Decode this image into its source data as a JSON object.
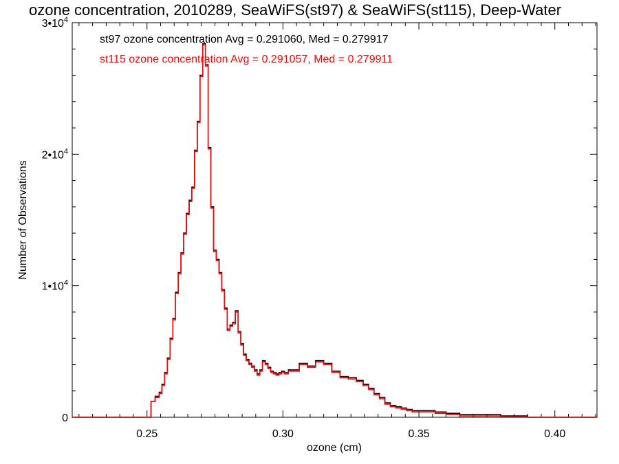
{
  "chart_data": {
    "type": "line",
    "title": "ozone concentration, 2010289, SeaWiFS(st97) & SeaWiFS(st115), Deep-Water",
    "xlabel": "ozone (cm)",
    "ylabel": "Number of Observations",
    "xlim": [
      0.2225,
      0.4155
    ],
    "ylim": [
      0,
      30000
    ],
    "x_ticks": [
      {
        "value": 0.25,
        "label": "0.25"
      },
      {
        "value": 0.3,
        "label": "0.30"
      },
      {
        "value": 0.35,
        "label": "0.35"
      },
      {
        "value": 0.4,
        "label": "0.40"
      }
    ],
    "y_ticks": [
      {
        "value": 0,
        "label": "0"
      },
      {
        "value": 10000,
        "label": "1•10^4"
      },
      {
        "value": 20000,
        "label": "2•10^4"
      },
      {
        "value": 30000,
        "label": "3•10^4"
      }
    ],
    "grid": false,
    "annotations": [
      {
        "text": "st97 ozone concentration Avg = 0.291060, Med = 0.279917",
        "color": "#000000"
      },
      {
        "text": "st115 ozone concentration Avg = 0.291057, Med = 0.279911",
        "color": "#ff0000"
      }
    ],
    "series": [
      {
        "name": "st97",
        "color": "#000000",
        "x": [
          0.2225,
          0.2505,
          0.2515,
          0.253,
          0.2545,
          0.2555,
          0.2565,
          0.2575,
          0.2585,
          0.2595,
          0.2605,
          0.2615,
          0.2625,
          0.2635,
          0.2645,
          0.2655,
          0.2665,
          0.2675,
          0.2685,
          0.2695,
          0.2705,
          0.2715,
          0.2725,
          0.2735,
          0.2745,
          0.2755,
          0.2765,
          0.2775,
          0.2785,
          0.2795,
          0.2805,
          0.2815,
          0.2825,
          0.2835,
          0.2845,
          0.2855,
          0.2865,
          0.2875,
          0.2885,
          0.2895,
          0.2905,
          0.2915,
          0.2925,
          0.2935,
          0.2945,
          0.2955,
          0.2965,
          0.2975,
          0.2985,
          0.2995,
          0.3005,
          0.302,
          0.304,
          0.306,
          0.309,
          0.312,
          0.315,
          0.318,
          0.321,
          0.324,
          0.327,
          0.3295,
          0.3315,
          0.3335,
          0.3355,
          0.3375,
          0.3395,
          0.3415,
          0.3435,
          0.3455,
          0.3475,
          0.3495,
          0.3525,
          0.356,
          0.36,
          0.365,
          0.37,
          0.375,
          0.38,
          0.385,
          0.39,
          0.395,
          0.4,
          0.405,
          0.41,
          0.4155
        ],
        "values": [
          0,
          0,
          1200,
          1600,
          1900,
          2500,
          3400,
          4500,
          6000,
          7500,
          9500,
          11000,
          12500,
          14000,
          15500,
          16500,
          17500,
          20300,
          22500,
          26000,
          28400,
          26800,
          20500,
          16000,
          12700,
          12000,
          11000,
          9700,
          8300,
          6700,
          7000,
          7200,
          8100,
          6500,
          5600,
          4800,
          4400,
          4100,
          3900,
          3600,
          3300,
          3600,
          4300,
          4100,
          3800,
          3500,
          3400,
          3300,
          3400,
          3500,
          3400,
          3600,
          3600,
          4100,
          3900,
          4300,
          4100,
          3500,
          3100,
          3000,
          2800,
          2500,
          2200,
          1800,
          1500,
          1100,
          900,
          800,
          700,
          600,
          500,
          500,
          500,
          400,
          300,
          200,
          200,
          200,
          100,
          100,
          0,
          0,
          0,
          0,
          0,
          0
        ]
      },
      {
        "name": "st115",
        "color": "#ff0000",
        "x": [
          0.2225,
          0.2505,
          0.2515,
          0.253,
          0.2545,
          0.2555,
          0.2565,
          0.2575,
          0.2585,
          0.2595,
          0.2605,
          0.2615,
          0.2625,
          0.2635,
          0.2645,
          0.2655,
          0.2665,
          0.2675,
          0.2685,
          0.2695,
          0.2705,
          0.2715,
          0.2725,
          0.2735,
          0.2745,
          0.2755,
          0.2765,
          0.2775,
          0.2785,
          0.2795,
          0.2805,
          0.2815,
          0.2825,
          0.2835,
          0.2845,
          0.2855,
          0.2865,
          0.2875,
          0.2885,
          0.2895,
          0.2905,
          0.2915,
          0.2925,
          0.2935,
          0.2945,
          0.2955,
          0.2965,
          0.2975,
          0.2985,
          0.2995,
          0.3005,
          0.302,
          0.304,
          0.306,
          0.309,
          0.312,
          0.315,
          0.318,
          0.321,
          0.324,
          0.327,
          0.3295,
          0.3315,
          0.3335,
          0.3355,
          0.3375,
          0.3395,
          0.3415,
          0.3435,
          0.3455,
          0.3475,
          0.3495,
          0.3525,
          0.356,
          0.36,
          0.365,
          0.37,
          0.375,
          0.38,
          0.385,
          0.39,
          0.395,
          0.4,
          0.405,
          0.41,
          0.4155
        ],
        "values": [
          0,
          0,
          1200,
          1500,
          1800,
          2400,
          3300,
          4400,
          5900,
          7400,
          9400,
          10900,
          12400,
          13900,
          15400,
          16400,
          17400,
          20200,
          22400,
          25900,
          28300,
          26700,
          20400,
          15900,
          12600,
          11900,
          10900,
          9600,
          8200,
          6600,
          6900,
          7100,
          8000,
          6400,
          5500,
          4700,
          4300,
          4000,
          3800,
          3500,
          3200,
          3500,
          4200,
          4000,
          3700,
          3400,
          3300,
          3200,
          3300,
          3400,
          3300,
          3500,
          3500,
          4000,
          3800,
          4200,
          4000,
          3400,
          3000,
          2900,
          2700,
          2400,
          2100,
          1700,
          1400,
          1000,
          800,
          700,
          600,
          500,
          400,
          400,
          400,
          300,
          200,
          100,
          100,
          100,
          50,
          50,
          0,
          0,
          0,
          0,
          0,
          0
        ]
      }
    ]
  }
}
